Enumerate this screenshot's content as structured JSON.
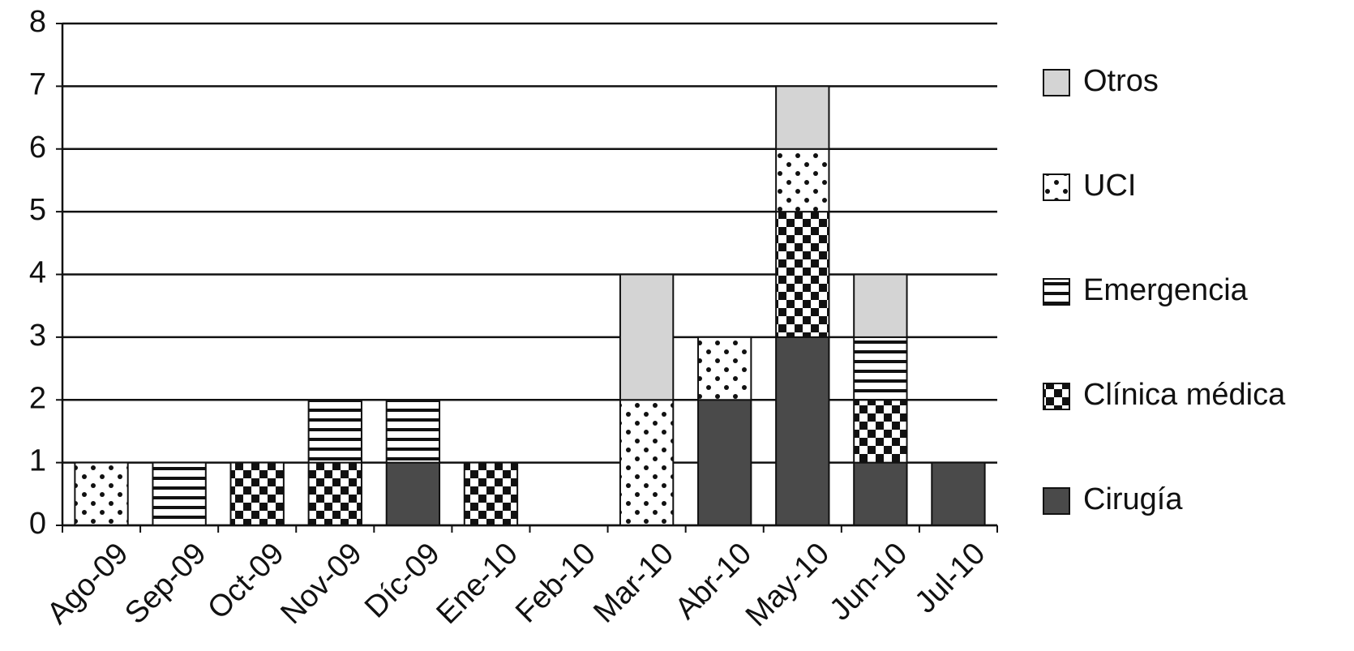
{
  "chart_data": {
    "type": "stacked-bar",
    "categories": [
      "Ago-09",
      "Sep-09",
      "Oct-09",
      "Nov-09",
      "Díc-09",
      "Ene-10",
      "Feb-10",
      "Mar-10",
      "Abr-10",
      "May-10",
      "Jun-10",
      "Jul-10"
    ],
    "series": [
      {
        "name": "Cirugía",
        "color": "#4a4a4a",
        "pattern": "solid",
        "values": [
          0,
          0,
          0,
          0,
          1,
          0,
          0,
          0,
          2,
          3,
          1,
          1
        ]
      },
      {
        "name": "Clínica médica",
        "color": "#111111",
        "pattern": "checker",
        "values": [
          0,
          0,
          1,
          1,
          0,
          1,
          0,
          0,
          0,
          2,
          1,
          0
        ]
      },
      {
        "name": "Emergencia",
        "color": "#111111",
        "pattern": "stripes",
        "values": [
          0,
          1,
          0,
          1,
          1,
          0,
          0,
          0,
          0,
          0,
          1,
          0
        ]
      },
      {
        "name": "UCI",
        "color": "#111111",
        "pattern": "dots",
        "values": [
          1,
          0,
          0,
          0,
          0,
          0,
          0,
          2,
          1,
          1,
          0,
          0
        ]
      },
      {
        "name": "Otros",
        "color": "#d4d4d4",
        "pattern": "solid",
        "values": [
          0,
          0,
          0,
          0,
          0,
          0,
          0,
          2,
          0,
          1,
          1,
          0
        ]
      }
    ],
    "ylim": [
      0,
      8
    ],
    "yticks": [
      0,
      1,
      2,
      3,
      4,
      5,
      6,
      7,
      8
    ],
    "grid": true,
    "legend": "right"
  }
}
